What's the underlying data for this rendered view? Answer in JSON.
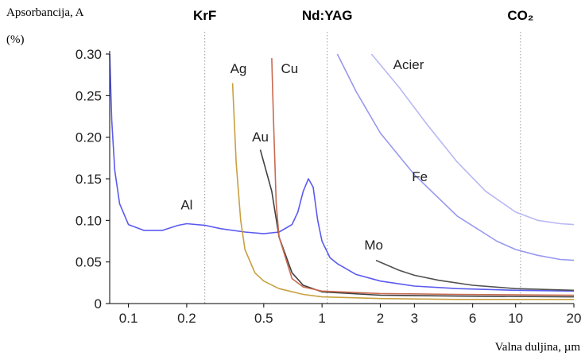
{
  "chart_data": {
    "type": "line",
    "ylabel_line1": "Apsorbancija, A",
    "ylabel_line2": "(%)",
    "xlabel": "Valna duljina, µm",
    "x_scale": "log",
    "xlim": [
      0.08,
      20
    ],
    "ylim": [
      0,
      0.3
    ],
    "grid": false,
    "y_ticks": [
      {
        "value": 0,
        "label": "0"
      },
      {
        "value": 0.05,
        "label": "0.05"
      },
      {
        "value": 0.1,
        "label": "0.10"
      },
      {
        "value": 0.15,
        "label": "0.15"
      },
      {
        "value": 0.2,
        "label": "0.20"
      },
      {
        "value": 0.25,
        "label": "0.25"
      },
      {
        "value": 0.3,
        "label": "0.30"
      }
    ],
    "x_ticks": [
      {
        "value": 0.1,
        "label": "0.1"
      },
      {
        "value": 0.2,
        "label": "0.2"
      },
      {
        "value": 0.5,
        "label": "0.5"
      },
      {
        "value": 1,
        "label": "1"
      },
      {
        "value": 2,
        "label": "2"
      },
      {
        "value": 3,
        "label": "3"
      },
      {
        "value": 6,
        "label": "6"
      },
      {
        "value": 10,
        "label": "10"
      },
      {
        "value": 20,
        "label": "20"
      }
    ],
    "laser_lines": [
      {
        "label": "KrF",
        "x": 0.248
      },
      {
        "label": "Nd:YAG",
        "x": 1.064
      },
      {
        "label": "CO₂",
        "x": 10.6
      }
    ],
    "series": [
      {
        "name": "Al",
        "color": "#5a5af0",
        "opacity": 1,
        "label_at": [
          0.2,
          0.113
        ],
        "points": [
          [
            0.08,
            0.3
          ],
          [
            0.082,
            0.22
          ],
          [
            0.085,
            0.16
          ],
          [
            0.09,
            0.12
          ],
          [
            0.1,
            0.095
          ],
          [
            0.12,
            0.088
          ],
          [
            0.15,
            0.088
          ],
          [
            0.18,
            0.094
          ],
          [
            0.2,
            0.096
          ],
          [
            0.25,
            0.094
          ],
          [
            0.3,
            0.09
          ],
          [
            0.4,
            0.086
          ],
          [
            0.5,
            0.084
          ],
          [
            0.6,
            0.086
          ],
          [
            0.7,
            0.095
          ],
          [
            0.75,
            0.11
          ],
          [
            0.8,
            0.135
          ],
          [
            0.85,
            0.15
          ],
          [
            0.9,
            0.14
          ],
          [
            0.95,
            0.1
          ],
          [
            1.0,
            0.075
          ],
          [
            1.1,
            0.055
          ],
          [
            1.2,
            0.048
          ],
          [
            1.5,
            0.035
          ],
          [
            2,
            0.027
          ],
          [
            3,
            0.021
          ],
          [
            5,
            0.018
          ],
          [
            10,
            0.016
          ],
          [
            20,
            0.015
          ]
        ]
      },
      {
        "name": "Ag",
        "color": "#c8a040",
        "opacity": 1,
        "label_at": [
          0.37,
          0.277
        ],
        "points": [
          [
            0.345,
            0.265
          ],
          [
            0.36,
            0.17
          ],
          [
            0.38,
            0.1
          ],
          [
            0.4,
            0.065
          ],
          [
            0.45,
            0.037
          ],
          [
            0.5,
            0.027
          ],
          [
            0.6,
            0.018
          ],
          [
            0.8,
            0.011
          ],
          [
            1,
            0.008
          ],
          [
            2,
            0.006
          ],
          [
            5,
            0.005
          ],
          [
            20,
            0.005
          ]
        ]
      },
      {
        "name": "Au",
        "color": "#404040",
        "opacity": 1,
        "label_at": [
          0.48,
          0.195
        ],
        "points": [
          [
            0.48,
            0.185
          ],
          [
            0.55,
            0.135
          ],
          [
            0.6,
            0.08
          ],
          [
            0.7,
            0.037
          ],
          [
            0.8,
            0.022
          ],
          [
            1,
            0.014
          ],
          [
            2,
            0.01
          ],
          [
            5,
            0.009
          ],
          [
            20,
            0.008
          ]
        ]
      },
      {
        "name": "Cu",
        "color": "#c86a50",
        "opacity": 1,
        "label_at": [
          0.68,
          0.277
        ],
        "points": [
          [
            0.55,
            0.295
          ],
          [
            0.56,
            0.23
          ],
          [
            0.58,
            0.12
          ],
          [
            0.6,
            0.08
          ],
          [
            0.7,
            0.03
          ],
          [
            0.8,
            0.02
          ],
          [
            1,
            0.015
          ],
          [
            2,
            0.012
          ],
          [
            5,
            0.011
          ],
          [
            20,
            0.01
          ]
        ]
      },
      {
        "name": "Mo",
        "color": "#505050",
        "opacity": 1,
        "label_at": [
          1.85,
          0.065
        ],
        "points": [
          [
            1.9,
            0.052
          ],
          [
            2.5,
            0.04
          ],
          [
            3,
            0.034
          ],
          [
            4,
            0.028
          ],
          [
            6,
            0.022
          ],
          [
            10,
            0.018
          ],
          [
            20,
            0.016
          ]
        ]
      },
      {
        "name": "Fe",
        "color": "#9898f0",
        "opacity": 1,
        "label_at": [
          3.2,
          0.147
        ],
        "points": [
          [
            1.2,
            0.3
          ],
          [
            1.5,
            0.255
          ],
          [
            2,
            0.205
          ],
          [
            3,
            0.155
          ],
          [
            5,
            0.105
          ],
          [
            8,
            0.075
          ],
          [
            10,
            0.065
          ],
          [
            13,
            0.058
          ],
          [
            17,
            0.053
          ],
          [
            20,
            0.052
          ]
        ]
      },
      {
        "name": "Acier",
        "color": "#b8b8f4",
        "opacity": 1,
        "label_at": [
          2.8,
          0.282
        ],
        "points": [
          [
            1.8,
            0.3
          ],
          [
            2.5,
            0.26
          ],
          [
            3.5,
            0.215
          ],
          [
            5,
            0.17
          ],
          [
            7,
            0.135
          ],
          [
            10,
            0.11
          ],
          [
            13,
            0.1
          ],
          [
            17,
            0.096
          ],
          [
            20,
            0.095
          ]
        ]
      }
    ]
  }
}
